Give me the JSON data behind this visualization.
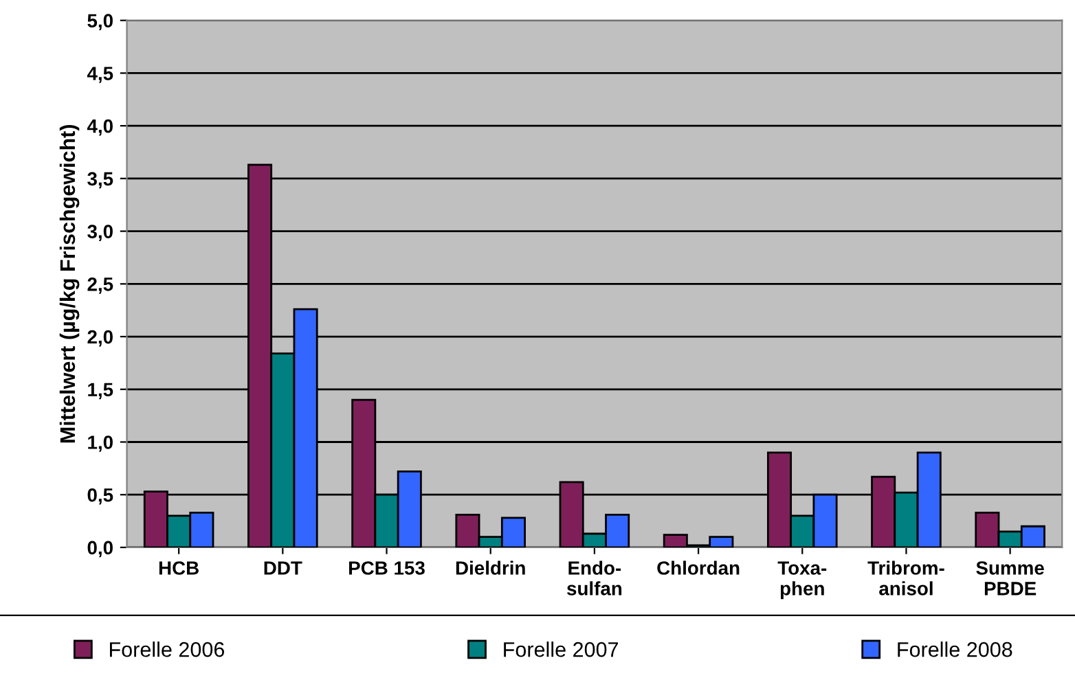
{
  "chart_data": {
    "type": "bar",
    "ylabel": "Mittelwert (µg/kg Frischgewicht)",
    "categories": [
      "HCB",
      "DDT",
      "PCB 153",
      "Dieldrin",
      "Endo-\nsulfan",
      "Chlordan",
      "Toxa-\nphen",
      "Tribrom-\nanisol",
      "Summe\nPBDE"
    ],
    "series": [
      {
        "name": "Forelle 2006",
        "color": "#7f1f5a",
        "values": [
          0.53,
          3.63,
          1.4,
          0.31,
          0.62,
          0.12,
          0.9,
          0.67,
          0.33
        ]
      },
      {
        "name": "Forelle 2007",
        "color": "#008080",
        "values": [
          0.3,
          1.84,
          0.5,
          0.1,
          0.13,
          0.02,
          0.3,
          0.52,
          0.15
        ]
      },
      {
        "name": "Forelle 2008",
        "color": "#3366ff",
        "values": [
          0.33,
          2.26,
          0.72,
          0.28,
          0.31,
          0.1,
          0.5,
          0.9,
          0.2
        ]
      }
    ],
    "ylim": [
      0,
      5
    ],
    "yticks": [
      {
        "value": 0,
        "label": "0,0"
      },
      {
        "value": 0.5,
        "label": "0,5"
      },
      {
        "value": 1,
        "label": "1,0"
      },
      {
        "value": 1.5,
        "label": "1,5"
      },
      {
        "value": 2,
        "label": "2,0"
      },
      {
        "value": 2.5,
        "label": "2,5"
      },
      {
        "value": 3,
        "label": "3,0"
      },
      {
        "value": 3.5,
        "label": "3,5"
      },
      {
        "value": 4,
        "label": "4,0"
      },
      {
        "value": 4.5,
        "label": "4,5"
      },
      {
        "value": 5,
        "label": "5,0"
      }
    ],
    "grid": "y",
    "legend": "bottom"
  }
}
